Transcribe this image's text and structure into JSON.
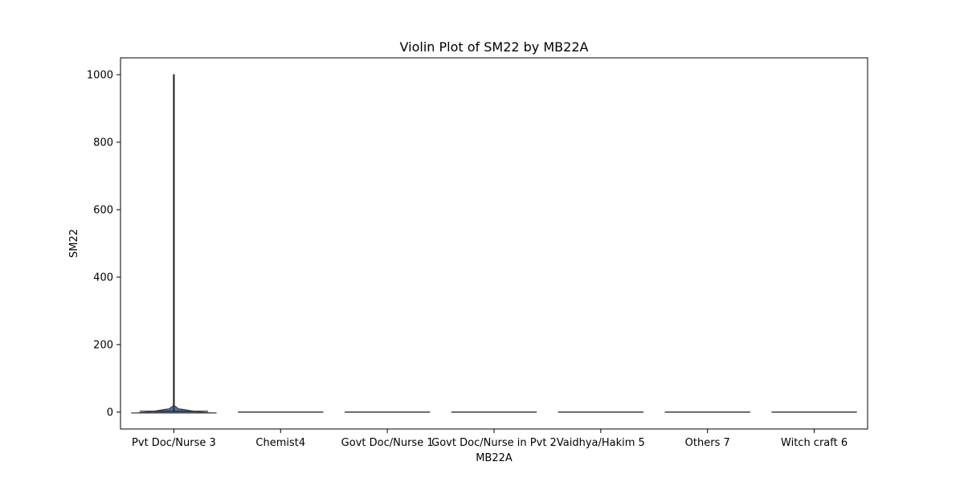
{
  "chart_data": {
    "type": "violin",
    "title": "Violin Plot of SM22 by MB22A",
    "xlabel": "MB22A",
    "ylabel": "SM22",
    "categories": [
      "Pvt Doc/Nurse 3",
      "Chemist4",
      "Govt Doc/Nurse 1",
      "Govt Doc/Nurse in Pvt 2",
      "Vaidhya/Hakim 5",
      "Others 7",
      "Witch craft 6"
    ],
    "ylim": [
      -50,
      1050
    ],
    "yticks": [
      0,
      200,
      400,
      600,
      800,
      1000
    ],
    "grid": false,
    "colors": {
      "violin_fill": "#4c72b0",
      "outline": "#3f3f3f"
    },
    "violins": [
      {
        "category": "Pvt Doc/Nurse 3",
        "min": 0,
        "max": 1000,
        "median": 0
      },
      {
        "category": "Chemist4",
        "min": 0,
        "max": 0,
        "median": 0
      },
      {
        "category": "Govt Doc/Nurse 1",
        "min": 0,
        "max": 0,
        "median": 0
      },
      {
        "category": "Govt Doc/Nurse in Pvt 2",
        "min": 0,
        "max": 0,
        "median": 0
      },
      {
        "category": "Vaidhya/Hakim 5",
        "min": 0,
        "max": 0,
        "median": 0
      },
      {
        "category": "Others 7",
        "min": 0,
        "max": 0,
        "median": 0
      },
      {
        "category": "Witch craft 6",
        "min": 0,
        "max": 0,
        "median": 0
      }
    ]
  }
}
